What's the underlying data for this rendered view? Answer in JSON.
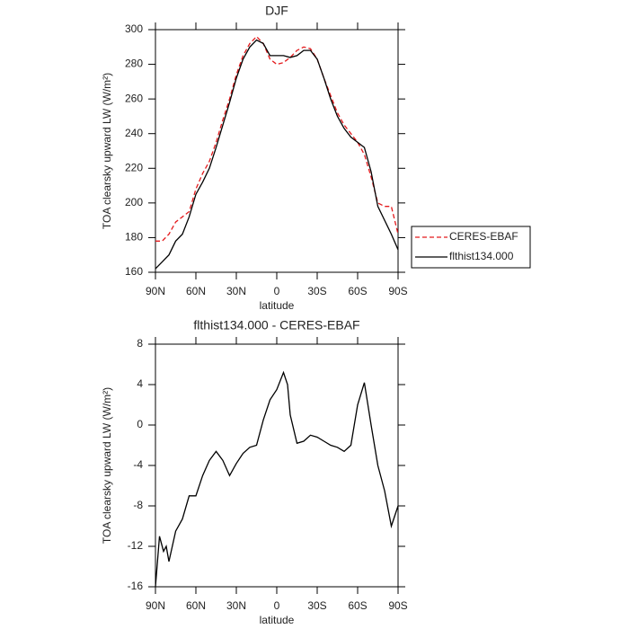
{
  "chart_data": [
    {
      "type": "line",
      "title": "DJF",
      "xlabel": "latitude",
      "ylabel": "TOA clearsky upward LW (W/m²)",
      "x": [
        90,
        85,
        80,
        75,
        70,
        65,
        60,
        55,
        50,
        45,
        40,
        35,
        30,
        25,
        20,
        15,
        10,
        5,
        0,
        -5,
        -10,
        -15,
        -20,
        -25,
        -30,
        -35,
        -40,
        -45,
        -50,
        -55,
        -60,
        -65,
        -70,
        -75,
        -80,
        -85,
        -90
      ],
      "series": [
        {
          "name": "CERES-EBAF",
          "color": "#e41a1c",
          "linestyle": "dashed",
          "values": [
            178,
            178,
            182,
            189,
            192,
            195,
            208,
            217,
            224,
            235,
            248,
            260,
            274,
            285,
            292,
            296,
            292,
            283,
            280,
            281,
            284,
            288,
            290,
            289,
            283,
            272,
            262,
            252,
            245,
            240,
            235,
            228,
            215,
            200,
            198,
            198,
            182
          ]
        },
        {
          "name": "flthist134.000",
          "color": "#000000",
          "linestyle": "solid",
          "values": [
            162,
            166,
            170,
            178,
            182,
            192,
            205,
            212,
            220,
            232,
            245,
            258,
            272,
            283,
            290,
            294,
            292,
            285,
            285,
            285,
            284,
            285,
            288,
            288,
            283,
            272,
            260,
            250,
            243,
            238,
            235,
            232,
            218,
            198,
            190,
            182,
            173
          ]
        }
      ],
      "xlim": [
        90,
        -90
      ],
      "xticks": [
        {
          "value": 90,
          "label": "90N"
        },
        {
          "value": 60,
          "label": "60N"
        },
        {
          "value": 30,
          "label": "30N"
        },
        0,
        {
          "value": -30,
          "label": "30S"
        },
        {
          "value": -60,
          "label": "60S"
        },
        {
          "value": -90,
          "label": "90S"
        }
      ],
      "ylim": [
        160,
        300
      ],
      "yticks": [
        160,
        180,
        200,
        220,
        240,
        260,
        280,
        300
      ],
      "legend": "right"
    },
    {
      "type": "line",
      "title": "flthist134.000 - CERES-EBAF",
      "xlabel": "latitude",
      "ylabel": "TOA clearsky upward LW (W/m²)",
      "x": [
        90,
        87,
        84,
        82,
        80,
        75,
        70,
        65,
        60,
        55,
        50,
        45,
        40,
        35,
        30,
        25,
        20,
        15,
        10,
        5,
        0,
        -5,
        -8,
        -10,
        -15,
        -20,
        -25,
        -30,
        -35,
        -40,
        -45,
        -50,
        -55,
        -60,
        -65,
        -70,
        -75,
        -80,
        -85,
        -90
      ],
      "series": [
        {
          "name": "flthist134.000 - CERES-EBAF",
          "color": "#000000",
          "linestyle": "solid",
          "values": [
            -16,
            -11,
            -12.5,
            -12,
            -13.5,
            -10.5,
            -9.3,
            -7,
            -7,
            -5,
            -3.5,
            -2.6,
            -3.5,
            -5,
            -3.8,
            -2.8,
            -2.2,
            -2,
            0.5,
            2.5,
            3.5,
            5.2,
            4,
            1,
            -1.8,
            -1.6,
            -1,
            -1.2,
            -1.6,
            -2,
            -2.2,
            -2.6,
            -2,
            2,
            4.2,
            0,
            -4,
            -6.5,
            -10,
            -8
          ]
        }
      ],
      "xlim": [
        90,
        -90
      ],
      "xticks": [
        {
          "value": 90,
          "label": "90N"
        },
        {
          "value": 60,
          "label": "60N"
        },
        {
          "value": 30,
          "label": "30N"
        },
        0,
        {
          "value": -30,
          "label": "30S"
        },
        {
          "value": -60,
          "label": "60S"
        },
        {
          "value": -90,
          "label": "90S"
        }
      ],
      "ylim": [
        -16,
        8
      ],
      "yticks": [
        -16,
        -12,
        -8,
        -4,
        0,
        4,
        8
      ]
    }
  ]
}
